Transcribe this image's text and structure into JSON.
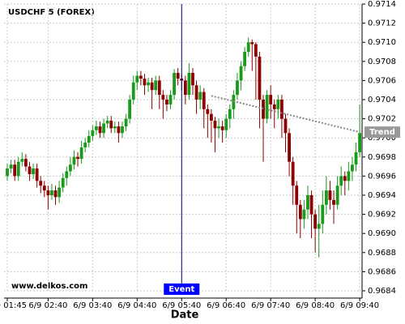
{
  "chart_data": {
    "type": "candlestick",
    "title": "USDCHF 5 (FOREX)",
    "watermark": "www.delkos.com",
    "x_label": "Date",
    "categories": [
      "6/9 01:45",
      null,
      null,
      null,
      null,
      null,
      null,
      null,
      null,
      null,
      null,
      "6/9 02:40",
      null,
      null,
      null,
      null,
      null,
      null,
      null,
      null,
      null,
      null,
      null,
      "6/9 03:40",
      null,
      null,
      null,
      null,
      null,
      null,
      null,
      null,
      null,
      null,
      null,
      "6/9 04:40",
      null,
      null,
      null,
      null,
      null,
      null,
      null,
      null,
      null,
      null,
      null,
      "6/9 05:40",
      null,
      null,
      null,
      null,
      null,
      null,
      null,
      null,
      null,
      null,
      null,
      "6/9 06:40",
      null,
      null,
      null,
      null,
      null,
      null,
      null,
      null,
      null,
      null,
      null,
      "6/9 07:40",
      null,
      null,
      null,
      null,
      null,
      null,
      null,
      null,
      null,
      null,
      null,
      "6/9 08:40",
      null,
      null,
      null,
      null,
      null,
      null,
      null,
      null,
      null,
      null,
      null,
      "6/9 09:40"
    ],
    "open": [
      0.9696,
      0.96968,
      0.96972,
      0.9696,
      0.96975,
      0.96978,
      0.9697,
      0.96962,
      0.96968,
      0.96955,
      0.9695,
      0.96945,
      0.9694,
      0.96945,
      0.96938,
      0.96948,
      0.96958,
      0.96965,
      0.96972,
      0.9698,
      0.96978,
      0.9699,
      0.96995,
      0.97002,
      0.97008,
      0.97012,
      0.97005,
      0.97015,
      0.97018,
      0.9701,
      0.97012,
      0.97005,
      0.97012,
      0.9702,
      0.9704,
      0.97058,
      0.97065,
      0.97062,
      0.97055,
      0.97058,
      0.9705,
      0.9706,
      0.97045,
      0.9704,
      0.97035,
      0.97045,
      0.97068,
      0.97062,
      0.9706,
      0.97045,
      0.97068,
      0.97055,
      0.9704,
      0.97048,
      0.9703,
      0.97025,
      0.97018,
      0.9701,
      0.97012,
      0.97008,
      0.9702,
      0.9703,
      0.97045,
      0.9706,
      0.97075,
      0.9709,
      0.971,
      0.97098,
      0.97085,
      0.9704,
      0.9702,
      0.97045,
      0.97035,
      0.9703,
      0.9704,
      0.9702,
      0.97005,
      0.96975,
      0.9695,
      0.9693,
      0.96915,
      0.96925,
      0.9694,
      0.9692,
      0.96905,
      0.9691,
      0.9693,
      0.96945,
      0.96935,
      0.9693,
      0.9695,
      0.9696,
      0.96955,
      0.96965,
      0.96972,
      0.96985
    ],
    "high": [
      0.96973,
      0.96977,
      0.96977,
      0.9698,
      0.96985,
      0.96983,
      0.96975,
      0.96973,
      0.96973,
      0.9696,
      0.96955,
      0.9695,
      0.96952,
      0.9695,
      0.96955,
      0.96963,
      0.9697,
      0.9698,
      0.96987,
      0.96985,
      0.96997,
      0.97,
      0.97008,
      0.97013,
      0.97018,
      0.97017,
      0.9702,
      0.97023,
      0.97023,
      0.97017,
      0.97017,
      0.97017,
      0.97025,
      0.97045,
      0.97065,
      0.9707,
      0.9707,
      0.97067,
      0.97063,
      0.97063,
      0.97065,
      0.97065,
      0.9705,
      0.97045,
      0.9705,
      0.97072,
      0.97073,
      0.97067,
      0.97065,
      0.97078,
      0.97073,
      0.9706,
      0.97055,
      0.97052,
      0.97035,
      0.9703,
      0.97022,
      0.9702,
      0.97018,
      0.97025,
      0.97035,
      0.9705,
      0.97068,
      0.9708,
      0.97095,
      0.97105,
      0.97103,
      0.971,
      0.9709,
      0.97045,
      0.9705,
      0.97055,
      0.9704,
      0.97045,
      0.97045,
      0.97025,
      0.9701,
      0.9698,
      0.96955,
      0.96935,
      0.96935,
      0.9695,
      0.96945,
      0.96925,
      0.9693,
      0.96945,
      0.9696,
      0.96955,
      0.96945,
      0.9696,
      0.9697,
      0.96965,
      0.96975,
      0.9698,
      0.96995,
      0.97035
    ],
    "low": [
      0.96955,
      0.96963,
      0.96955,
      0.96955,
      0.9697,
      0.96965,
      0.96955,
      0.96957,
      0.96948,
      0.96942,
      0.96938,
      0.96925,
      0.96935,
      0.9693,
      0.96932,
      0.96943,
      0.9695,
      0.9696,
      0.96967,
      0.9697,
      0.96973,
      0.96985,
      0.9699,
      0.96997,
      0.97003,
      0.97,
      0.97,
      0.9701,
      0.97005,
      0.97005,
      0.96995,
      0.97,
      0.97007,
      0.97015,
      0.97035,
      0.9705,
      0.97055,
      0.97045,
      0.97048,
      0.9703,
      0.97045,
      0.9703,
      0.9702,
      0.97028,
      0.9703,
      0.9704,
      0.97055,
      0.9705,
      0.97035,
      0.9704,
      0.97045,
      0.97025,
      0.9703,
      0.9701,
      0.97,
      0.96995,
      0.96985,
      0.97,
      0.96995,
      0.97,
      0.9701,
      0.9702,
      0.9704,
      0.9705,
      0.9707,
      0.97085,
      0.9707,
      0.9704,
      0.9701,
      0.96975,
      0.97015,
      0.9702,
      0.9701,
      0.9702,
      0.97,
      0.96985,
      0.9696,
      0.9693,
      0.969,
      0.96895,
      0.96905,
      0.96915,
      0.96895,
      0.9688,
      0.96875,
      0.969,
      0.9692,
      0.96925,
      0.9691,
      0.96925,
      0.9694,
      0.9694,
      0.96945,
      0.96955,
      0.96965,
      0.9698
    ],
    "close": [
      0.96968,
      0.96972,
      0.9696,
      0.96975,
      0.96978,
      0.9697,
      0.96962,
      0.96968,
      0.96955,
      0.9695,
      0.96945,
      0.9694,
      0.96945,
      0.96938,
      0.96948,
      0.96958,
      0.96965,
      0.96972,
      0.9698,
      0.96978,
      0.9699,
      0.96995,
      0.97002,
      0.97008,
      0.97012,
      0.97005,
      0.97015,
      0.97018,
      0.9701,
      0.97012,
      0.97005,
      0.97012,
      0.9702,
      0.9704,
      0.97058,
      0.97065,
      0.97062,
      0.97055,
      0.97058,
      0.9705,
      0.9706,
      0.97045,
      0.9704,
      0.97035,
      0.97045,
      0.97068,
      0.97062,
      0.9706,
      0.97045,
      0.97068,
      0.97055,
      0.9704,
      0.97048,
      0.9703,
      0.97025,
      0.97018,
      0.9701,
      0.97012,
      0.97008,
      0.9702,
      0.9703,
      0.97045,
      0.9706,
      0.97075,
      0.9709,
      0.971,
      0.97098,
      0.97085,
      0.9704,
      0.9702,
      0.97045,
      0.97035,
      0.9703,
      0.9704,
      0.9702,
      0.97005,
      0.96975,
      0.9695,
      0.9693,
      0.96915,
      0.96925,
      0.9694,
      0.9692,
      0.96905,
      0.9691,
      0.9693,
      0.96945,
      0.96935,
      0.9693,
      0.9695,
      0.9696,
      0.96955,
      0.96965,
      0.96972,
      0.96985,
      0.97005
    ],
    "up_color": "#1a9a1a",
    "down_color": "#8b0000",
    "ylim": [
      0.9684,
      0.9714
    ],
    "yticks": [
      0.9684,
      0.9686,
      0.9688,
      {
        "value": 0.969,
        "label": "0.9690"
      },
      0.9692,
      0.9694,
      0.9696,
      0.9698,
      {
        "value": 0.97,
        "label": "0.9700"
      },
      0.9702,
      0.9704,
      0.9706,
      0.9708,
      {
        "value": 0.971,
        "label": "0.9710"
      },
      0.9712,
      0.9714
    ],
    "grid": true,
    "trend": {
      "label": "Trend",
      "x": [
        55,
        95
      ],
      "y": [
        0.97044,
        0.97006
      ]
    },
    "event": {
      "label": "Event",
      "x": 47
    }
  }
}
